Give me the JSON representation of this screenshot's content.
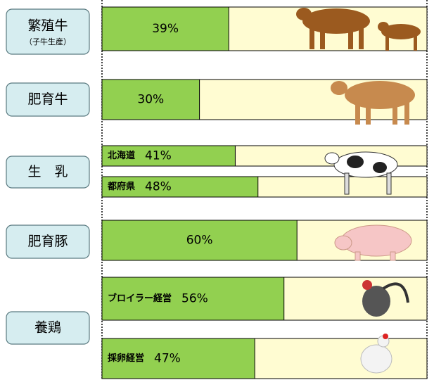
{
  "chart_data": {
    "type": "bar",
    "xlim": [
      0,
      100
    ],
    "color": "#92d050",
    "track_color": "#fffcd2",
    "groups": [
      {
        "label": "繁殖牛",
        "sublabel": "（子牛生産）",
        "bars": [
          {
            "value": 39,
            "value_label": "39%"
          }
        ]
      },
      {
        "label": "肥育牛",
        "bars": [
          {
            "value": 30,
            "value_label": "30%"
          }
        ]
      },
      {
        "label": "生　乳",
        "bars": [
          {
            "name": "北海道",
            "value": 41,
            "value_label": "41%"
          },
          {
            "name": "都府県",
            "value": 48,
            "value_label": "48%"
          }
        ]
      },
      {
        "label": "肥育豚",
        "bars": [
          {
            "value": 60,
            "value_label": "60%"
          }
        ]
      },
      {
        "label": "養鶏",
        "bars": [
          {
            "name": "ブロイラー経営",
            "value": 56,
            "value_label": "56%"
          },
          {
            "name": "採卵経営",
            "value": 47,
            "value_label": "47%"
          }
        ]
      }
    ]
  }
}
